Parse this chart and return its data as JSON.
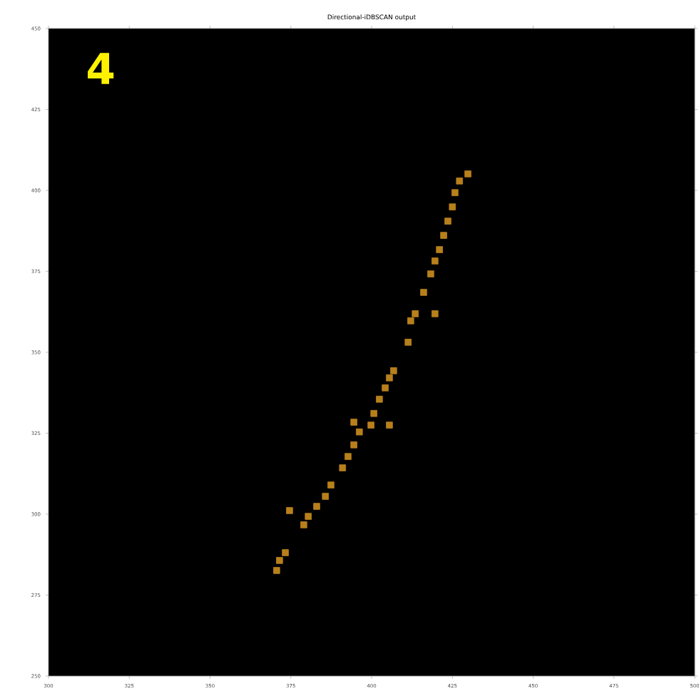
{
  "chart_data": {
    "type": "scatter",
    "title": "Directional-iDBSCAN output",
    "annotations": [
      "4"
    ],
    "x": [
      429.8,
      427.2,
      425.8,
      425.0,
      423.6,
      422.3,
      421.0,
      419.6,
      418.3,
      416.1,
      413.5,
      419.6,
      412.1,
      411.3,
      406.8,
      405.5,
      404.2,
      402.4,
      400.7,
      399.8,
      394.5,
      405.5,
      396.2,
      394.5,
      392.7,
      391.0,
      387.4,
      385.7,
      383.0,
      380.4,
      379.0,
      374.6,
      373.3,
      371.5,
      370.6
    ],
    "series": [
      {
        "color": "#b8801c",
        "values": [
          405.1,
          402.9,
          399.3,
          394.9,
          390.5,
          386.1,
          381.7,
          378.2,
          374.2,
          368.5,
          361.9,
          361.9,
          359.7,
          353.1,
          344.3,
          342.1,
          339.0,
          335.5,
          331.1,
          327.5,
          328.4,
          327.5,
          325.4,
          321.4,
          317.8,
          314.3,
          309.0,
          305.5,
          302.4,
          299.3,
          296.7,
          301.1,
          288.1,
          285.7,
          282.6
        ]
      }
    ],
    "marker": "square",
    "xlim": [
      300,
      500
    ],
    "ylim": [
      250,
      450
    ],
    "xticks": [
      300,
      325,
      350,
      375,
      400,
      425,
      450,
      475,
      500
    ],
    "yticks": [
      250,
      275,
      300,
      325,
      350,
      375,
      400,
      425,
      450
    ],
    "grid": false
  }
}
